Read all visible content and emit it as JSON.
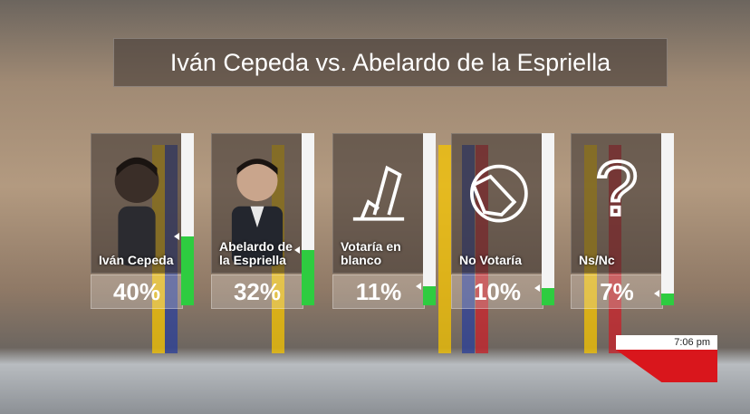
{
  "chart_data": {
    "type": "bar",
    "title": "Iván Cepeda vs. Abelardo de la Espriella",
    "categories": [
      "Iván Cepeda",
      "Abelardo de la Espriella",
      "Votaría en blanco",
      "No Votaría",
      "Ns/Nc"
    ],
    "values": [
      40,
      32,
      11,
      10,
      7
    ],
    "value_labels": [
      "40%",
      "32%",
      "11%",
      "10%",
      "7%"
    ],
    "color": "#2ecc40",
    "ylim": [
      0,
      100
    ]
  },
  "clock": "7:06 pm"
}
